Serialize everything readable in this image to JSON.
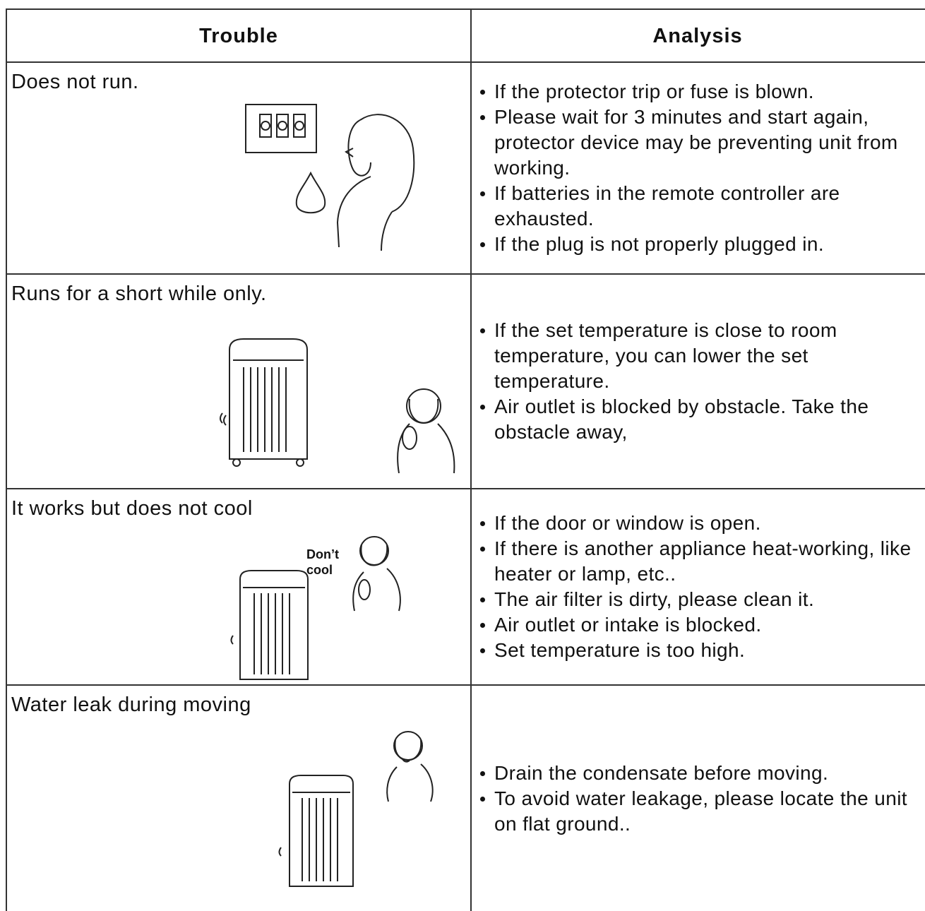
{
  "table": {
    "headers": [
      "Trouble",
      "Analysis"
    ],
    "rows": [
      {
        "trouble": "Does not run.",
        "analysis": [
          "If the protector trip or fuse is blown.",
          "Please wait for 3 minutes and start again, protector device may be preventing unit from working.",
          "If batteries in the remote controller are exhausted.",
          "If the plug is not properly plugged in."
        ]
      },
      {
        "trouble": "Runs for a short while only.",
        "analysis": [
          "If the set temperature is close to room temperature, you can lower the set temperature.",
          "Air outlet is blocked by obstacle. Take the obstacle away,"
        ]
      },
      {
        "trouble": "It works but does not cool",
        "annotation": "Don’t cool",
        "analysis": [
          "If the door or window is open.",
          "If there is another appliance heat-working, like heater or lamp, etc..",
          "The air filter is dirty, please clean it.",
          "Air outlet or intake is blocked.",
          "Set temperature is too high."
        ]
      },
      {
        "trouble": "Water leak during moving",
        "analysis": [
          "Drain the condensate before moving.",
          "To avoid water leakage, please locate the unit on flat ground.."
        ]
      }
    ]
  }
}
